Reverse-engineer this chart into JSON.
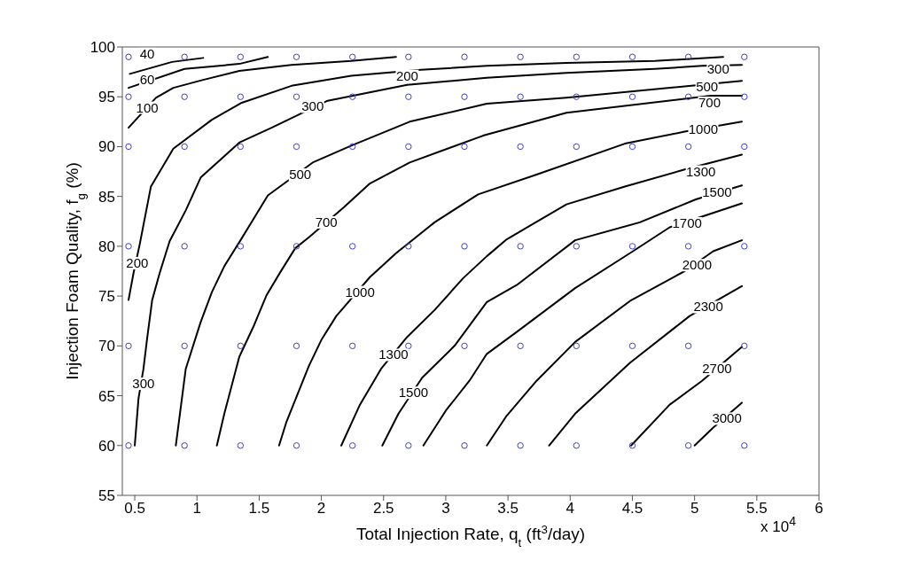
{
  "chart_data": {
    "type": "line",
    "xlabel": "Total Injection Rate, q$_{t}$ (ft$^{3}$/day)",
    "ylabel": "Injection Foam Quality, f$_{g}$ (%)",
    "xlim": [
      0.4,
      6
    ],
    "xticks": [
      0.5,
      1,
      1.5,
      2,
      2.5,
      3,
      3.5,
      4,
      4.5,
      5,
      5.5,
      6
    ],
    "ylim": [
      55,
      100
    ],
    "yticks": [
      55,
      60,
      65,
      70,
      75,
      80,
      85,
      90,
      95,
      100
    ],
    "series": [
      {
        "color": "#000000",
        "marker": "none",
        "x": [
          0.46,
          0.8,
          1.05
        ],
        "values": [
          97.3,
          98.5,
          98.9
        ]
      },
      {
        "color": "#000000",
        "marker": "none",
        "x": [
          0.45,
          0.9,
          1.34,
          1.57
        ],
        "values": [
          95.9,
          97.8,
          98.3,
          99.0
        ]
      },
      {
        "color": "#000000",
        "marker": "none",
        "x": [
          0.45,
          0.67,
          0.81,
          1.05,
          1.34,
          1.76,
          2.24,
          2.6
        ],
        "values": [
          91.9,
          94.9,
          95.9,
          96.7,
          97.6,
          98.2,
          98.6,
          99.0
        ]
      },
      {
        "type": "line",
        "color": "#000000",
        "marker": "none",
        "x": [
          0.45,
          0.49,
          0.54,
          0.63,
          0.81,
          1.12,
          1.36,
          1.76,
          2.24,
          2.8,
          3.33,
          3.97,
          4.68,
          5.23
        ],
        "values": [
          74.6,
          77.3,
          80.2,
          86.0,
          89.8,
          92.7,
          94.4,
          96.1,
          97.1,
          97.7,
          98.1,
          98.4,
          98.6,
          99.0
        ]
      },
      {
        "type": "line",
        "color": "#000000",
        "marker": "none",
        "x": [
          0.5,
          0.53,
          0.57,
          0.6,
          0.64,
          0.7,
          0.78,
          0.91,
          1.03,
          1.34,
          1.6,
          2.05,
          2.69,
          3.33,
          3.97,
          4.68,
          5.06,
          5.38
        ],
        "values": [
          60,
          64.7,
          67.7,
          70.8,
          74.6,
          77.3,
          80.5,
          83.6,
          86.9,
          90.4,
          91.9,
          94.6,
          96.2,
          96.9,
          97.4,
          97.8,
          98.1,
          98.2
        ]
      },
      {
        "type": "line",
        "color": "#000000",
        "marker": "none",
        "x": [
          0.83,
          0.91,
          1.03,
          1.12,
          1.22,
          1.35,
          1.57,
          1.93,
          2.24,
          2.71,
          3.33,
          3.97,
          5.38
        ],
        "values": [
          60,
          67.7,
          72.4,
          75.4,
          78.0,
          80.6,
          85.1,
          88.4,
          90.1,
          92.5,
          94.3,
          94.9,
          96.6
        ]
      },
      {
        "type": "line",
        "color": "#000000",
        "marker": "none",
        "x": [
          1.16,
          1.22,
          1.34,
          1.46,
          1.56,
          1.67,
          1.79,
          1.9,
          2.18,
          2.39,
          2.71,
          3.3,
          3.97,
          5.13,
          5.38
        ],
        "values": [
          60,
          63.2,
          68.9,
          72.1,
          75.1,
          77.4,
          79.8,
          80.9,
          83.9,
          86.3,
          88.4,
          91.1,
          93.4,
          95.1,
          95.1
        ]
      },
      {
        "type": "line",
        "color": "#000000",
        "marker": "none",
        "x": [
          1.66,
          1.72,
          1.9,
          2.0,
          2.12,
          2.39,
          2.6,
          2.91,
          3.26,
          3.73,
          4.44,
          4.92,
          5.38
        ],
        "values": [
          60,
          62.4,
          68.0,
          70.6,
          73.0,
          76.9,
          79.3,
          82.4,
          85.2,
          87.2,
          90.3,
          91.5,
          92.5
        ]
      },
      {
        "type": "line",
        "color": "#000000",
        "marker": "none",
        "x": [
          2.16,
          2.31,
          2.48,
          2.69,
          2.91,
          3.14,
          3.33,
          3.49,
          3.97,
          4.44,
          4.92,
          5.38
        ],
        "values": [
          60,
          64.1,
          67.7,
          70.9,
          73.6,
          76.8,
          79.0,
          80.7,
          84.2,
          86.0,
          87.7,
          89.2
        ]
      },
      {
        "type": "line",
        "color": "#000000",
        "marker": "none",
        "x": [
          2.49,
          2.62,
          2.81,
          3.07,
          3.33,
          3.57,
          4.04,
          4.56,
          5.01,
          5.38
        ],
        "values": [
          60,
          63.2,
          66.8,
          70.0,
          74.4,
          76.1,
          80.6,
          82.4,
          84.7,
          86.1
        ]
      },
      {
        "type": "line",
        "color": "#000000",
        "marker": "none",
        "x": [
          2.82,
          3.0,
          3.19,
          3.33,
          3.57,
          4.04,
          4.48,
          4.8,
          5.38
        ],
        "values": [
          60,
          63.5,
          66.5,
          69.2,
          71.4,
          75.8,
          79.3,
          81.9,
          84.3
        ]
      },
      {
        "type": "line",
        "color": "#000000",
        "marker": "none",
        "x": [
          3.33,
          3.49,
          3.73,
          4.04,
          4.48,
          4.92,
          5.15,
          5.38
        ],
        "values": [
          60,
          63.0,
          66.5,
          70.4,
          74.5,
          77.5,
          79.5,
          80.6
        ]
      },
      {
        "type": "line",
        "color": "#000000",
        "marker": "none",
        "x": [
          3.83,
          4.04,
          4.48,
          4.96,
          5.38
        ],
        "values": [
          60,
          63.2,
          68.3,
          73.0,
          76.0
        ]
      },
      {
        "type": "line",
        "color": "#000000",
        "marker": "none",
        "x": [
          4.49,
          4.8,
          5.06,
          5.38
        ],
        "values": [
          60,
          64.1,
          66.5,
          69.9
        ]
      },
      {
        "type": "line",
        "color": "#000000",
        "marker": "none",
        "x": [
          5.0,
          5.15,
          5.38
        ],
        "values": [
          60,
          61.8,
          64.3
        ]
      },
      {
        "type": "scatter",
        "color": "#4040c0",
        "marker": "circle",
        "x": [
          0.45,
          0.9,
          1.35,
          1.8,
          2.25,
          2.7,
          3.15,
          3.6,
          4.05,
          4.5,
          4.95,
          5.4,
          0.45,
          0.9,
          1.35,
          1.8,
          2.25,
          2.7,
          3.15,
          3.6,
          4.05,
          4.5,
          4.95,
          5.4,
          0.45,
          0.9,
          1.35,
          1.8,
          2.25,
          2.7,
          3.15,
          3.6,
          4.05,
          4.5,
          4.95,
          5.4,
          0.45,
          0.9,
          1.35,
          1.8,
          2.25,
          2.7,
          3.15,
          3.6,
          4.05,
          4.5,
          4.95,
          5.4,
          0.45,
          0.9,
          1.35,
          1.8,
          2.25,
          2.7,
          3.15,
          3.6,
          4.05,
          4.5,
          4.95,
          5.4,
          0.45,
          0.9,
          1.35,
          1.8,
          2.25,
          2.7,
          3.15,
          3.6,
          4.05,
          4.5,
          4.95,
          5.4
        ],
        "values": [
          99,
          99,
          99,
          99,
          99,
          99,
          99,
          99,
          99,
          99,
          99,
          99,
          95,
          95,
          95,
          95,
          95,
          95,
          95,
          95,
          95,
          95,
          95,
          95,
          90,
          90,
          90,
          90,
          90,
          90,
          90,
          90,
          90,
          90,
          90,
          90,
          80,
          80,
          80,
          80,
          80,
          80,
          80,
          80,
          80,
          80,
          80,
          80,
          70,
          70,
          70,
          70,
          70,
          70,
          70,
          70,
          70,
          70,
          70,
          70,
          60,
          60,
          60,
          60,
          60,
          60,
          60,
          60,
          60,
          60,
          60,
          60
        ]
      }
    ],
    "annotations": [
      {
        "text": "40",
        "x": 0.6,
        "y": 99.3
      },
      {
        "text": "60",
        "x": 0.6,
        "y": 96.7
      },
      {
        "text": "100",
        "x": 0.6,
        "y": 93.9
      },
      {
        "text": "200",
        "x": 0.52,
        "y": 78.3
      },
      {
        "text": "200",
        "x": 2.69,
        "y": 97.1
      },
      {
        "text": "300",
        "x": 0.57,
        "y": 66.2
      },
      {
        "text": "300",
        "x": 1.93,
        "y": 94.0
      },
      {
        "text": "300",
        "x": 5.19,
        "y": 97.8
      },
      {
        "text": "500",
        "x": 1.83,
        "y": 87.2
      },
      {
        "text": "500",
        "x": 5.1,
        "y": 96.0
      },
      {
        "text": "700",
        "x": 2.04,
        "y": 82.4
      },
      {
        "text": "700",
        "x": 5.12,
        "y": 94.4
      },
      {
        "text": "1000",
        "x": 2.31,
        "y": 75.4
      },
      {
        "text": "1000",
        "x": 5.07,
        "y": 91.7
      },
      {
        "text": "1300",
        "x": 2.58,
        "y": 69.1
      },
      {
        "text": "1300",
        "x": 5.05,
        "y": 87.5
      },
      {
        "text": "1500",
        "x": 2.74,
        "y": 65.3
      },
      {
        "text": "1500",
        "x": 5.18,
        "y": 85.4
      },
      {
        "text": "1700",
        "x": 4.94,
        "y": 82.3
      },
      {
        "text": "2000",
        "x": 5.02,
        "y": 78.1
      },
      {
        "text": "2300",
        "x": 5.11,
        "y": 73.9
      },
      {
        "text": "2700",
        "x": 5.18,
        "y": 67.7
      },
      {
        "text": "3000",
        "x": 5.26,
        "y": 62.7
      },
      "x 10$^{4}$"
    ]
  }
}
